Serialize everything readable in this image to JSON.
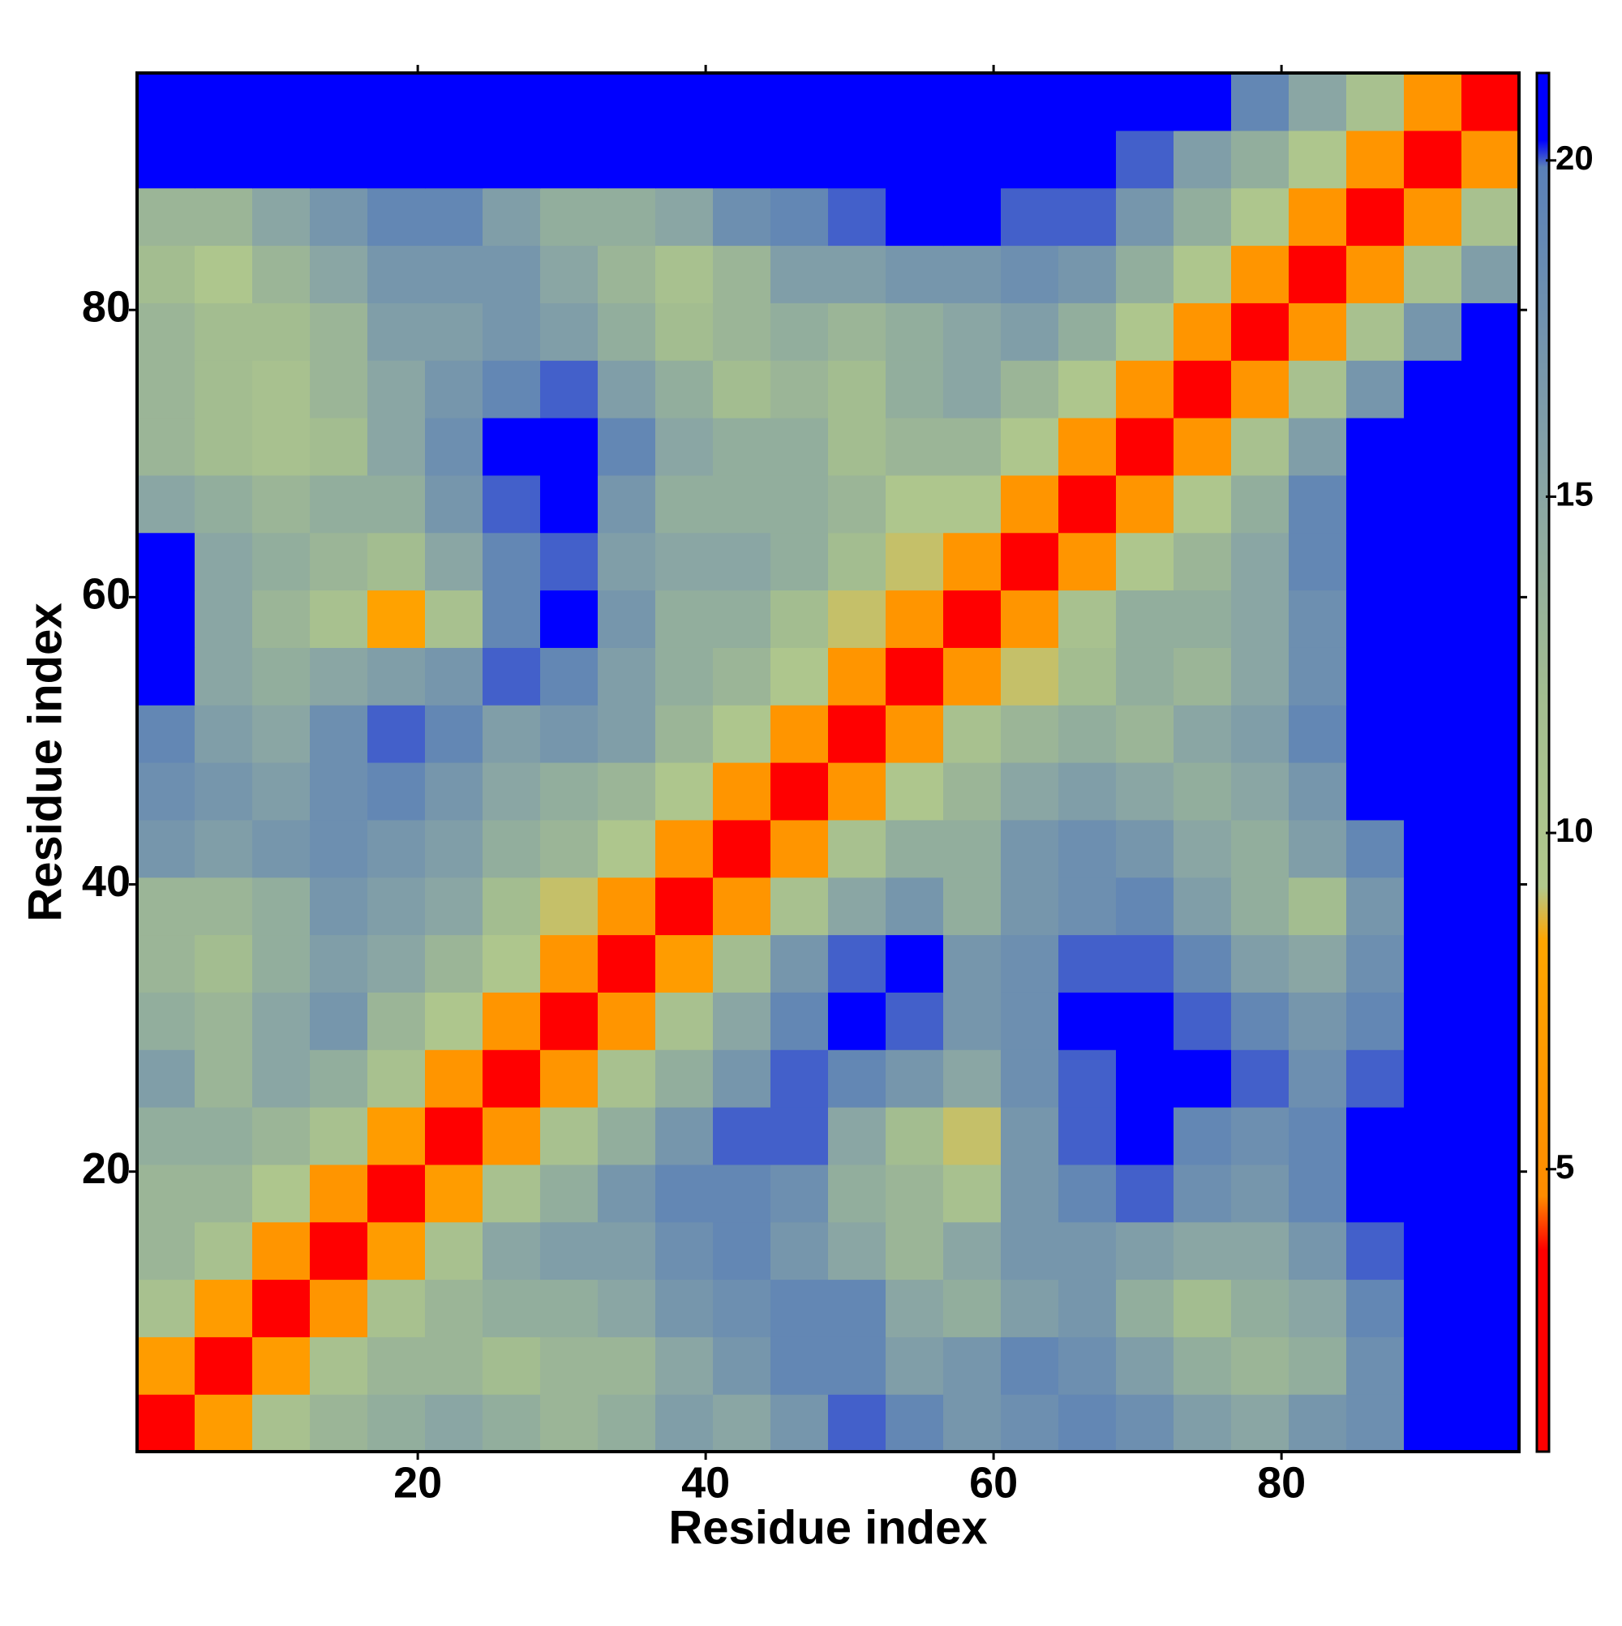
{
  "chart_data": {
    "type": "heatmap",
    "xlabel": "Residue index",
    "ylabel": "Residue index",
    "x_bins": [
      0.5,
      4.5,
      8.5,
      12.5,
      16.5,
      20.5,
      24.5,
      28.5,
      32.5,
      36.5,
      40.5,
      44.5,
      48.5,
      52.5,
      56.5,
      60.5,
      64.5,
      68.5,
      72.5,
      76.5,
      80.5,
      84.5,
      88.5,
      92.5,
      96.5
    ],
    "y_bins": [
      0.5,
      4.5,
      8.5,
      12.5,
      16.5,
      20.5,
      24.5,
      28.5,
      32.5,
      36.5,
      40.5,
      44.5,
      48.5,
      52.5,
      56.5,
      60.5,
      64.5,
      68.5,
      72.5,
      76.5,
      80.5,
      84.5,
      88.5,
      92.5,
      96.5
    ],
    "values": [
      [
        3,
        7,
        11,
        13,
        14,
        15,
        14,
        13,
        14,
        16,
        15,
        17,
        20,
        19,
        17,
        18,
        19,
        18,
        16,
        15,
        17,
        18,
        21,
        21
      ],
      [
        7,
        3,
        7,
        11,
        13,
        13,
        12,
        13,
        13,
        15,
        17,
        19,
        19,
        16,
        17,
        19,
        18,
        16,
        14,
        13,
        14,
        18,
        21,
        21
      ],
      [
        11,
        7,
        3,
        6,
        11,
        13,
        14,
        14,
        15,
        17,
        18,
        19,
        19,
        15,
        14,
        16,
        17,
        14,
        12,
        14,
        15,
        19,
        21,
        21
      ],
      [
        13,
        11,
        6,
        3,
        7,
        11,
        15,
        16,
        16,
        18,
        19,
        17,
        15,
        13,
        15,
        17,
        17,
        16,
        15,
        15,
        17,
        20,
        21,
        21
      ],
      [
        13,
        13,
        10,
        6,
        3,
        7,
        11,
        14,
        17,
        19,
        19,
        18,
        14,
        13,
        11,
        17,
        19,
        20,
        18,
        17,
        19,
        21,
        21,
        21
      ],
      [
        14,
        14,
        13,
        11,
        7,
        3,
        6,
        11,
        14,
        17,
        20,
        20,
        15,
        12,
        9,
        17,
        20,
        21,
        19,
        18,
        19,
        21,
        21,
        21
      ],
      [
        16,
        13,
        15,
        14,
        11,
        6,
        3,
        6,
        11,
        14,
        17,
        20,
        19,
        17,
        15,
        18,
        20,
        21,
        21,
        20,
        18,
        20,
        21,
        21
      ],
      [
        14,
        13,
        15,
        17,
        13,
        10,
        6,
        3,
        6,
        11,
        15,
        19,
        21,
        20,
        17,
        18,
        21,
        21,
        20,
        19,
        17,
        19,
        21,
        21
      ],
      [
        13,
        12,
        14,
        16,
        15,
        13,
        10,
        6,
        3,
        7,
        12,
        17,
        20,
        21,
        17,
        18,
        20,
        20,
        19,
        16,
        15,
        18,
        21,
        21
      ],
      [
        13,
        13,
        14,
        17,
        16,
        15,
        12,
        9,
        6,
        3,
        6,
        11,
        15,
        17,
        14,
        17,
        18,
        19,
        16,
        14,
        12,
        17,
        21,
        21
      ],
      [
        17,
        16,
        17,
        18,
        17,
        16,
        14,
        13,
        10,
        6,
        3,
        6,
        11,
        14,
        14,
        17,
        18,
        17,
        15,
        14,
        16,
        19,
        21,
        21
      ],
      [
        18,
        17,
        16,
        18,
        19,
        17,
        15,
        14,
        13,
        10,
        6,
        3,
        6,
        10,
        13,
        15,
        16,
        15,
        14,
        15,
        17,
        21,
        21,
        21
      ],
      [
        19,
        16,
        15,
        18,
        20,
        19,
        16,
        17,
        16,
        13,
        10,
        6,
        3,
        6,
        11,
        13,
        14,
        13,
        15,
        16,
        19,
        21,
        21,
        21
      ],
      [
        21,
        15,
        14,
        15,
        16,
        17,
        20,
        19,
        16,
        14,
        13,
        10,
        6,
        3,
        6,
        9,
        12,
        14,
        13,
        15,
        18,
        21,
        21,
        21
      ],
      [
        21,
        15,
        13,
        11,
        8,
        11,
        19,
        21,
        17,
        14,
        14,
        12,
        9,
        6,
        3,
        6,
        11,
        14,
        14,
        15,
        18,
        21,
        21,
        21
      ],
      [
        21,
        15,
        14,
        13,
        12,
        15,
        19,
        20,
        16,
        15,
        15,
        14,
        12,
        9,
        6,
        3,
        6,
        10,
        13,
        15,
        19,
        21,
        21,
        21
      ],
      [
        15,
        14,
        13,
        14,
        14,
        17,
        20,
        21,
        17,
        14,
        14,
        14,
        13,
        10,
        10,
        6,
        3,
        6,
        10,
        14,
        19,
        21,
        21,
        21
      ],
      [
        13,
        12,
        11,
        12,
        15,
        18,
        21,
        21,
        19,
        15,
        14,
        14,
        12,
        13,
        13,
        10,
        6,
        3,
        6,
        11,
        16,
        21,
        21,
        21
      ],
      [
        13,
        12,
        11,
        13,
        15,
        17,
        19,
        20,
        16,
        14,
        12,
        13,
        12,
        14,
        15,
        13,
        10,
        6,
        3,
        6,
        11,
        17,
        21,
        21
      ],
      [
        13,
        12,
        12,
        13,
        16,
        16,
        17,
        16,
        14,
        12,
        13,
        14,
        13,
        14,
        15,
        16,
        14,
        10,
        6,
        3,
        6,
        11,
        17,
        21
      ],
      [
        12,
        10,
        13,
        15,
        17,
        17,
        17,
        15,
        13,
        11,
        13,
        16,
        16,
        17,
        17,
        18,
        17,
        14,
        10,
        6,
        3,
        6,
        11,
        16
      ],
      [
        13,
        13,
        15,
        17,
        19,
        19,
        16,
        14,
        14,
        15,
        18,
        19,
        20,
        21,
        21,
        20,
        20,
        17,
        14,
        10,
        6,
        3,
        6,
        11
      ],
      [
        21,
        21,
        21,
        21,
        21,
        21,
        21,
        21,
        21,
        21,
        21,
        21,
        21,
        21,
        21,
        21,
        21,
        20,
        16,
        14,
        10,
        6,
        3,
        6
      ],
      [
        21,
        21,
        21,
        21,
        21,
        21,
        21,
        21,
        21,
        21,
        21,
        21,
        21,
        21,
        21,
        21,
        21,
        21,
        21,
        19,
        15,
        11,
        6,
        3
      ]
    ],
    "xlim": [
      0.5,
      96.5
    ],
    "ylim": [
      0.5,
      96.5
    ],
    "xticks": [
      20,
      40,
      60,
      80
    ],
    "yticks": [
      20,
      40,
      60,
      80
    ],
    "clim": [
      0.8,
      21.3
    ],
    "cticks": [
      5,
      10,
      15,
      20
    ],
    "colormap": [
      {
        "value": 0.8,
        "color": "#ff0000"
      },
      {
        "value": 3.8,
        "color": "#ff0000"
      },
      {
        "value": 4.6,
        "color": "#ff8c00"
      },
      {
        "value": 8.4,
        "color": "#ffa500"
      },
      {
        "value": 9.2,
        "color": "#b2c98c"
      },
      {
        "value": 12,
        "color": "#a3bd90"
      },
      {
        "value": 15,
        "color": "#8aa6a4"
      },
      {
        "value": 19.9,
        "color": "#5a80b8"
      },
      {
        "value": 20.3,
        "color": "#0000ff"
      },
      {
        "value": 21.3,
        "color": "#0000ff"
      }
    ]
  }
}
